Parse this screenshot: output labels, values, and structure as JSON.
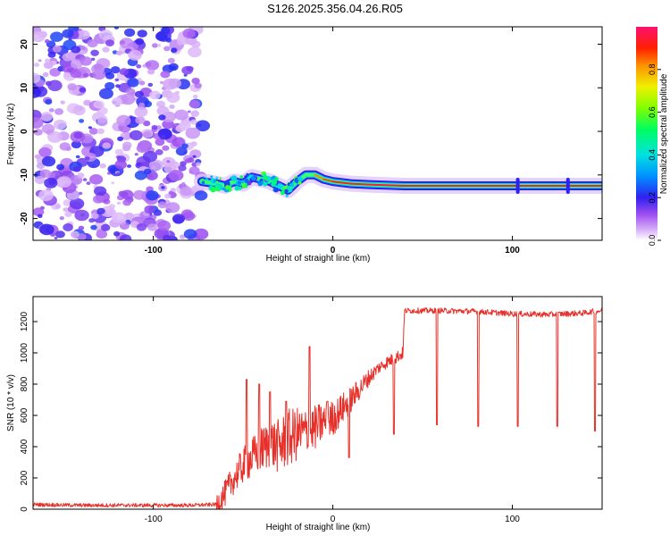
{
  "title": "S126.2025.356.04.26.R05",
  "chart_data": [
    {
      "type": "heatmap",
      "name": "spectrogram",
      "xlabel": "Height of straight line (km)",
      "ylabel": "Frequency (Hz)",
      "xlim": [
        -167,
        150
      ],
      "ylim": [
        -25,
        24
      ],
      "xticks": [
        -100,
        0,
        100
      ],
      "xtick_labels": [
        "-100",
        "0",
        "100"
      ],
      "yticks": [
        -20,
        -10,
        0,
        10,
        20
      ],
      "ytick_labels": [
        "-20",
        "-10",
        "0",
        "10",
        "20"
      ],
      "noise_region_x": [
        -167,
        -73
      ],
      "signal_track": {
        "x": [
          -73,
          -65,
          -60,
          -55,
          -50,
          -45,
          -40,
          -35,
          -30,
          -25,
          -20,
          -15,
          -10,
          -5,
          0,
          10,
          20,
          40,
          60,
          80,
          100,
          120,
          150
        ],
        "freq": [
          -11.5,
          -12,
          -12.5,
          -11.5,
          -12,
          -10.5,
          -11,
          -11.5,
          -12.5,
          -13.5,
          -11.5,
          -10,
          -10,
          -11,
          -11.5,
          -12,
          -12.2,
          -12.5,
          -12.5,
          -12.5,
          -12.5,
          -12.5,
          -12.5
        ],
        "amplitude": [
          0.5,
          0.6,
          0.55,
          0.5,
          0.55,
          0.6,
          0.55,
          0.5,
          0.5,
          0.5,
          0.6,
          0.7,
          0.8,
          0.85,
          0.9,
          0.95,
          0.95,
          0.95,
          0.95,
          0.95,
          0.95,
          0.95,
          0.95
        ]
      },
      "colorbar": {
        "label": "Normalized spectral amplitude",
        "range": [
          0,
          1
        ],
        "ticks": [
          0.0,
          0.2,
          0.4,
          0.6,
          0.8
        ],
        "tick_labels": [
          "0.0",
          "0.2",
          "0.4",
          "0.6",
          "0.8"
        ]
      }
    },
    {
      "type": "line",
      "name": "snr",
      "xlabel": "Height of straight line (km)",
      "ylabel": "SNR (10 * v/v)",
      "xlim": [
        -167,
        150
      ],
      "ylim": [
        0,
        1360
      ],
      "xticks": [
        -100,
        0,
        100
      ],
      "xtick_labels": [
        "-100",
        "0",
        "100"
      ],
      "yticks": [
        0,
        200,
        400,
        600,
        800,
        1000,
        1200
      ],
      "ytick_labels": [
        "0",
        "200",
        "400",
        "600",
        "800",
        "1000",
        "1200"
      ],
      "series": [
        {
          "name": "SNR",
          "color": "#e8302a",
          "x": [
            -167,
            -140,
            -100,
            -80,
            -65,
            -60,
            -55,
            -50,
            -45,
            -40,
            -35,
            -30,
            -25,
            -20,
            -15,
            -10,
            -5,
            0,
            5,
            10,
            15,
            20,
            25,
            30,
            35,
            38,
            39,
            40,
            60,
            80,
            100,
            120,
            130,
            140,
            145,
            150
          ],
          "y": [
            30,
            25,
            25,
            25,
            30,
            100,
            200,
            280,
            330,
            380,
            420,
            400,
            450,
            480,
            490,
            520,
            560,
            580,
            640,
            700,
            770,
            840,
            900,
            940,
            970,
            990,
            1000,
            1270,
            1270,
            1265,
            1250,
            1245,
            1250,
            1255,
            1265,
            1270
          ]
        }
      ],
      "spikes": [
        {
          "x": -48,
          "y": 830
        },
        {
          "x": -41,
          "y": 800
        },
        {
          "x": -35,
          "y": 750
        },
        {
          "x": -26,
          "y": 690
        },
        {
          "x": -13,
          "y": 1040
        },
        {
          "x": -3,
          "y": 690
        },
        {
          "x": 9,
          "y": 330
        },
        {
          "x": 34,
          "y": 480
        },
        {
          "x": 58,
          "y": 540
        },
        {
          "x": 81,
          "y": 530
        },
        {
          "x": 103,
          "y": 530
        },
        {
          "x": 125,
          "y": 530
        },
        {
          "x": 146,
          "y": 500
        }
      ]
    }
  ]
}
